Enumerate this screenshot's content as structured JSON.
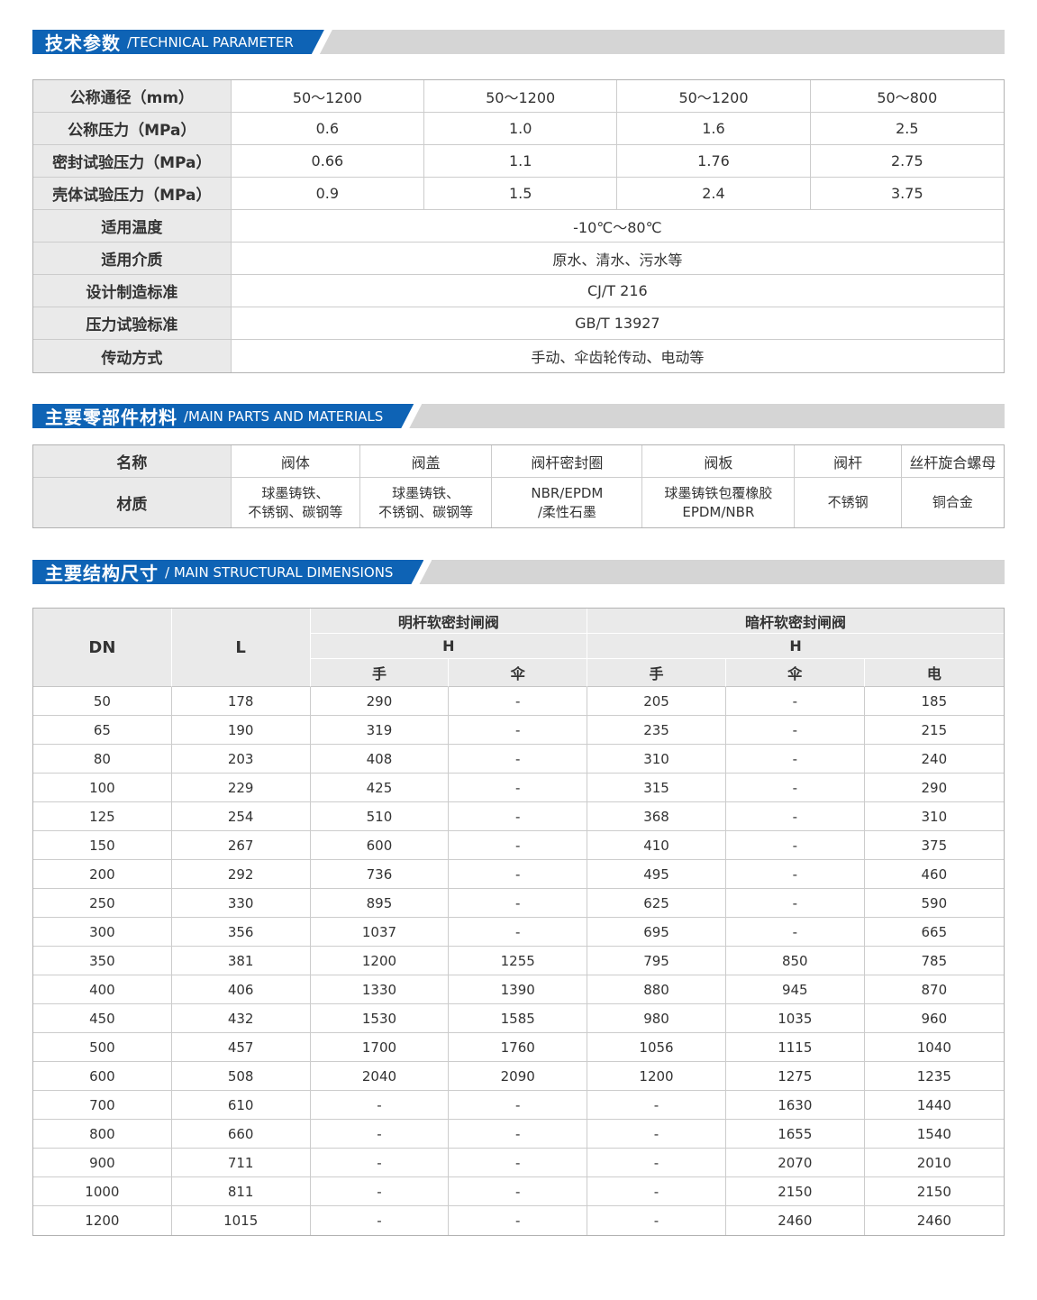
{
  "page": {
    "accent_blue": "#0e63b5",
    "bar_gray": "#d5d5d5",
    "header_cell_gray": "#eaeaea",
    "border_gray": "#cccccc"
  },
  "sections": {
    "technical": {
      "title_cn": "技术参数",
      "title_en": "/TECHNICAL PARAMETER"
    },
    "materials": {
      "title_cn": "主要零部件材料",
      "title_en": "/MAIN PARTS AND MATERIALS"
    },
    "dimensions": {
      "title_cn": "主要结构尺寸",
      "title_en": "/ MAIN STRUCTURAL DIMENSIONS"
    }
  },
  "technical_table": {
    "rows_split": [
      {
        "label": "公称通径（mm）",
        "values": [
          "50～1200",
          "50～1200",
          "50～1200",
          "50～800"
        ]
      },
      {
        "label": "公称压力（MPa）",
        "values": [
          "0.6",
          "1.0",
          "1.6",
          "2.5"
        ]
      },
      {
        "label": "密封试验压力（MPa）",
        "values": [
          "0.66",
          "1.1",
          "1.76",
          "2.75"
        ]
      },
      {
        "label": "壳体试验压力（MPa）",
        "values": [
          "0.9",
          "1.5",
          "2.4",
          "3.75"
        ]
      }
    ],
    "rows_merged": [
      {
        "label": "适用温度",
        "value": "-10℃～80℃"
      },
      {
        "label": "适用介质",
        "value": "原水、清水、污水等"
      },
      {
        "label": "设计制造标准",
        "value": "CJ/T 216"
      },
      {
        "label": "压力试验标准",
        "value": "GB/T 13927"
      },
      {
        "label": "传动方式",
        "value": "手动、伞齿轮传动、电动等"
      }
    ]
  },
  "materials_table": {
    "name_label": "名称",
    "material_label": "材质",
    "columns": [
      {
        "name": "阀体",
        "material": "球墨铸铁、\n不锈钢、碳钢等"
      },
      {
        "name": "阀盖",
        "material": "球墨铸铁、\n不锈钢、碳钢等"
      },
      {
        "name": "阀杆密封圈",
        "material": "NBR/EPDM\n/柔性石墨"
      },
      {
        "name": "阀板",
        "material": "球墨铸铁包覆橡胶\nEPDM/NBR"
      },
      {
        "name": "阀杆",
        "material": "不锈钢"
      },
      {
        "name": "丝杆旋合螺母",
        "material": "铜合金"
      }
    ]
  },
  "dimensions_table": {
    "col_dn": "DN",
    "col_l": "L",
    "group_rising": "明杆软密封闸阀",
    "group_non_rising": "暗杆软密封闸阀",
    "col_h": "H",
    "sub_hand": "手",
    "sub_bevel": "伞",
    "sub_electric": "电",
    "rows": [
      [
        "50",
        "178",
        "290",
        "-",
        "205",
        "-",
        "185"
      ],
      [
        "65",
        "190",
        "319",
        "-",
        "235",
        "-",
        "215"
      ],
      [
        "80",
        "203",
        "408",
        "-",
        "310",
        "-",
        "240"
      ],
      [
        "100",
        "229",
        "425",
        "-",
        "315",
        "-",
        "290"
      ],
      [
        "125",
        "254",
        "510",
        "-",
        "368",
        "-",
        "310"
      ],
      [
        "150",
        "267",
        "600",
        "-",
        "410",
        "-",
        "375"
      ],
      [
        "200",
        "292",
        "736",
        "-",
        "495",
        "-",
        "460"
      ],
      [
        "250",
        "330",
        "895",
        "-",
        "625",
        "-",
        "590"
      ],
      [
        "300",
        "356",
        "1037",
        "-",
        "695",
        "-",
        "665"
      ],
      [
        "350",
        "381",
        "1200",
        "1255",
        "795",
        "850",
        "785"
      ],
      [
        "400",
        "406",
        "1330",
        "1390",
        "880",
        "945",
        "870"
      ],
      [
        "450",
        "432",
        "1530",
        "1585",
        "980",
        "1035",
        "960"
      ],
      [
        "500",
        "457",
        "1700",
        "1760",
        "1056",
        "1115",
        "1040"
      ],
      [
        "600",
        "508",
        "2040",
        "2090",
        "1200",
        "1275",
        "1235"
      ],
      [
        "700",
        "610",
        "-",
        "-",
        "-",
        "1630",
        "1440"
      ],
      [
        "800",
        "660",
        "-",
        "-",
        "-",
        "1655",
        "1540"
      ],
      [
        "900",
        "711",
        "-",
        "-",
        "-",
        "2070",
        "2010"
      ],
      [
        "1000",
        "811",
        "-",
        "-",
        "-",
        "2150",
        "2150"
      ],
      [
        "1200",
        "1015",
        "-",
        "-",
        "-",
        "2460",
        "2460"
      ]
    ]
  }
}
